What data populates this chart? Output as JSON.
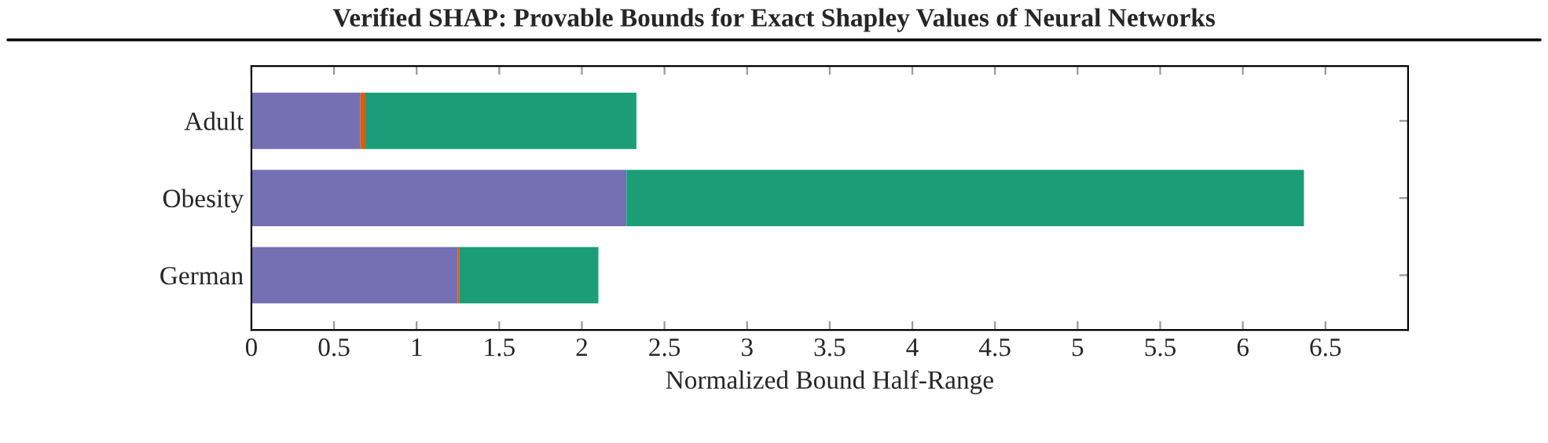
{
  "chart_data": {
    "type": "bar",
    "orientation": "horizontal",
    "stacked": true,
    "title": "Verified SHAP: Provable Bounds for Exact Shapley Values of Neural Networks",
    "xlabel": "Normalized Bound Half-Range",
    "categories": [
      "Adult",
      "Obesity",
      "German"
    ],
    "series": [
      {
        "color": "#7570b3",
        "values": [
          0.66,
          2.27,
          1.25
        ]
      },
      {
        "color": "#d95f02",
        "values": [
          0.03,
          0,
          0.01
        ]
      },
      {
        "color": "#1b9e77",
        "values": [
          1.64,
          4.1,
          0.84
        ]
      }
    ],
    "xlim": [
      0,
      7
    ],
    "xticks": [
      0,
      0.5,
      1,
      1.5,
      2,
      2.5,
      3,
      3.5,
      4,
      4.5,
      5,
      5.5,
      6,
      6.5
    ],
    "grid": false,
    "legend": false
  }
}
